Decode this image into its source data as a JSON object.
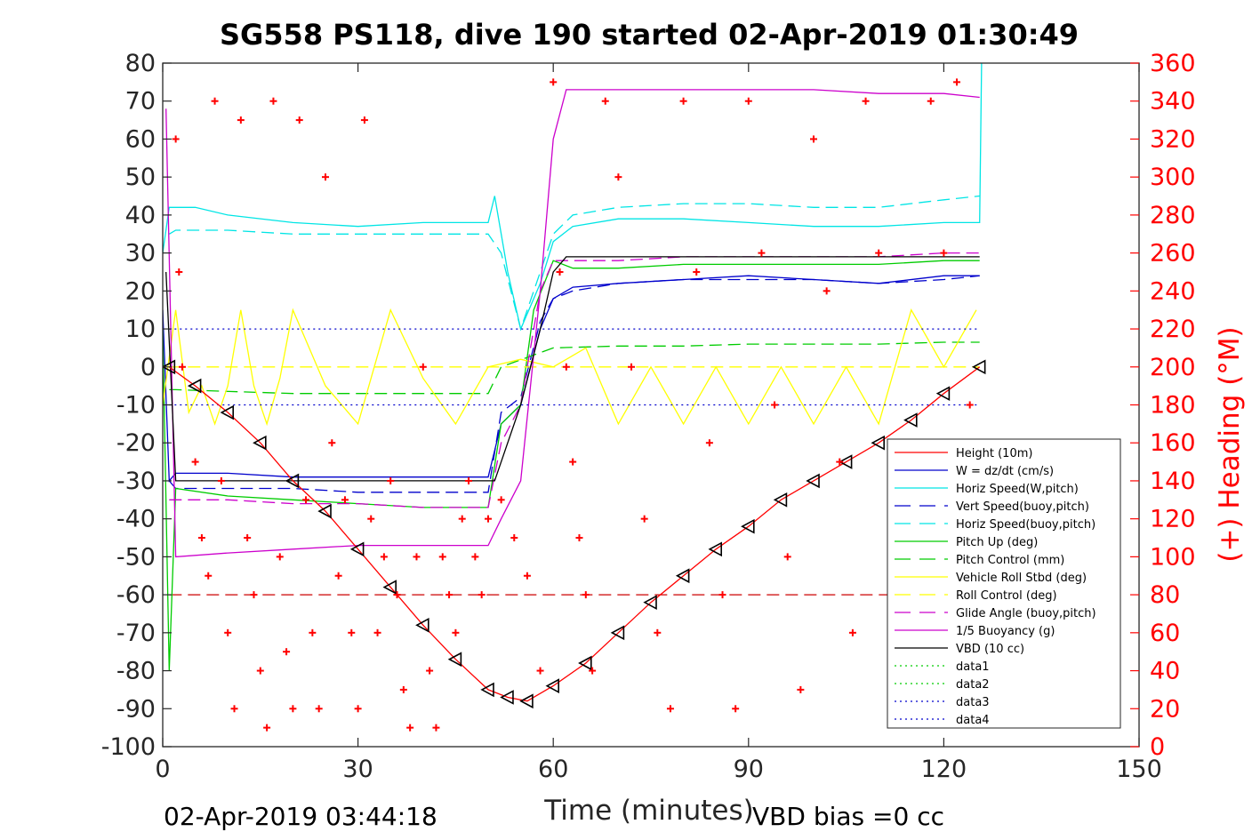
{
  "chart_data": {
    "type": "line",
    "title": "SG558 PS118, dive 190 started 02-Apr-2019 01:30:49",
    "xlabel": "Time (minutes)",
    "ylabel_right": "(+) Heading (°M)",
    "xlim": [
      0,
      150
    ],
    "ylim": [
      -100,
      80
    ],
    "ylim_right": [
      0,
      360
    ],
    "x_ticks": [
      "0",
      "30",
      "60",
      "90",
      "120",
      "150"
    ],
    "y_ticks": [
      "80",
      "70",
      "60",
      "50",
      "40",
      "30",
      "20",
      "10",
      "0",
      "-10",
      "-20",
      "-30",
      "-40",
      "-50",
      "-60",
      "-70",
      "-80",
      "-90",
      "-100"
    ],
    "y_ticks_right": [
      "360",
      "340",
      "320",
      "300",
      "280",
      "260",
      "240",
      "220",
      "200",
      "180",
      "160",
      "140",
      "120",
      "100",
      "80",
      "60",
      "40",
      "20",
      "0"
    ],
    "footer_left": "02-Apr-2019 03:44:18",
    "footer_right": "VBD bias =0 cc",
    "legend_position": "lower-right",
    "series": [
      {
        "name": "Height (10m)",
        "color": "#ff0000",
        "style": "solid",
        "marker": "triangle",
        "x": [
          1,
          5,
          10,
          15,
          20,
          25,
          30,
          35,
          40,
          45,
          50,
          53,
          56,
          60,
          65,
          70,
          75,
          80,
          85,
          90,
          95,
          100,
          105,
          110,
          115,
          120,
          125.5
        ],
        "y": [
          0,
          -5,
          -12,
          -20,
          -30,
          -38,
          -48,
          -58,
          -68,
          -77,
          -85,
          -87,
          -88,
          -84,
          -78,
          -70,
          -62,
          -55,
          -48,
          -42,
          -35,
          -30,
          -25,
          -20,
          -14,
          -7,
          0
        ]
      },
      {
        "name": "W = dz/dt (cm/s)",
        "color": "#0000cc",
        "style": "solid",
        "x": [
          0,
          1,
          2,
          5,
          10,
          20,
          30,
          40,
          50,
          52,
          55,
          58,
          60,
          63,
          70,
          80,
          90,
          100,
          110,
          120,
          125.5
        ],
        "y": [
          15,
          -30,
          -28,
          -28,
          -28,
          -29,
          -29,
          -29,
          -29,
          -15,
          -10,
          10,
          18,
          21,
          22,
          23,
          24,
          23,
          22,
          24,
          24
        ]
      },
      {
        "name": "Horiz Speed(W,pitch)",
        "color": "#00e5e5",
        "style": "solid",
        "x": [
          0,
          1,
          2,
          5,
          10,
          20,
          30,
          40,
          50,
          51,
          53,
          55,
          58,
          60,
          63,
          70,
          80,
          90,
          100,
          110,
          120,
          125.5,
          125.8
        ],
        "y": [
          30,
          42,
          42,
          42,
          40,
          38,
          37,
          38,
          38,
          45,
          25,
          10,
          22,
          33,
          37,
          39,
          39,
          38,
          37,
          37,
          38,
          38,
          80
        ]
      },
      {
        "name": "Vert Speed(buoy,pitch)",
        "color": "#0000cc",
        "style": "dashed",
        "x": [
          1,
          2,
          10,
          20,
          30,
          40,
          50,
          52,
          55,
          58,
          60,
          63,
          70,
          80,
          90,
          100,
          110,
          120,
          125.5
        ],
        "y": [
          -30,
          -32,
          -32,
          -32,
          -33,
          -33,
          -33,
          -12,
          -8,
          12,
          18,
          20,
          22,
          23,
          23,
          23,
          22,
          23,
          24
        ]
      },
      {
        "name": "Horiz Speed(buoy,pitch)",
        "color": "#00e5e5",
        "style": "dashed",
        "x": [
          1,
          2,
          10,
          20,
          30,
          40,
          50,
          52,
          55,
          58,
          60,
          63,
          70,
          80,
          90,
          100,
          110,
          120,
          125.5
        ],
        "y": [
          35,
          36,
          36,
          35,
          35,
          35,
          35,
          30,
          10,
          25,
          35,
          40,
          42,
          43,
          43,
          42,
          42,
          44,
          45
        ]
      },
      {
        "name": "Pitch Up (deg)",
        "color": "#00cc00",
        "style": "solid",
        "x": [
          0,
          1,
          2,
          10,
          20,
          30,
          40,
          50,
          52,
          55,
          57,
          60,
          63,
          70,
          80,
          90,
          100,
          110,
          120,
          125.5
        ],
        "y": [
          10,
          -80,
          -32,
          -34,
          -35,
          -36,
          -37,
          -37,
          -15,
          -10,
          15,
          28,
          26,
          26,
          27,
          27,
          27,
          27,
          28,
          28
        ]
      },
      {
        "name": "Pitch Control (mm)",
        "color": "#00cc00",
        "style": "dashed",
        "x": [
          1,
          2,
          20,
          40,
          50,
          52,
          60,
          70,
          80,
          90,
          100,
          110,
          120,
          125.5
        ],
        "y": [
          -6,
          -6,
          -7,
          -7,
          -7,
          0,
          5,
          5.5,
          5.5,
          6,
          6,
          6,
          6.5,
          6.5
        ]
      },
      {
        "name": "Vehicle Roll Stbd (deg)",
        "color": "#ffff00",
        "style": "solid",
        "x": [
          0,
          2,
          4,
          6,
          8,
          10,
          12,
          14,
          16,
          18,
          20,
          25,
          30,
          35,
          40,
          45,
          50,
          55,
          60,
          65,
          70,
          75,
          80,
          85,
          90,
          95,
          100,
          105,
          110,
          115,
          120,
          125
        ],
        "y": [
          -10,
          15,
          -12,
          -5,
          -15,
          -5,
          15,
          -5,
          -15,
          -3,
          15,
          -5,
          -15,
          15,
          -3,
          -15,
          0,
          2,
          0,
          5,
          -15,
          0,
          -15,
          0,
          -15,
          0,
          -15,
          0,
          -15,
          15,
          0,
          15
        ]
      },
      {
        "name": "Roll Control (deg)",
        "color": "#ffff00",
        "style": "dashed",
        "x": [
          1,
          125.5
        ],
        "y": [
          0,
          0
        ]
      },
      {
        "name": "Glide Angle (buoy,pitch)",
        "color": "#cc00cc",
        "style": "dashed",
        "x": [
          1,
          2,
          10,
          20,
          30,
          40,
          50,
          52,
          55,
          58,
          60,
          63,
          70,
          80,
          90,
          100,
          110,
          120,
          125.5
        ],
        "y": [
          -35,
          -35,
          -35,
          -36,
          -36,
          -37,
          -37,
          -20,
          -10,
          20,
          28,
          28,
          28,
          29,
          29,
          29,
          29,
          30,
          30
        ]
      },
      {
        "name": "1/5 Buoyancy (g)",
        "color": "#cc00cc",
        "style": "solid",
        "x": [
          0.5,
          2,
          10,
          20,
          30,
          40,
          50,
          52,
          55,
          58,
          60,
          62,
          70,
          80,
          90,
          100,
          110,
          120,
          125.5
        ],
        "y": [
          68,
          -50,
          -49,
          -48,
          -47,
          -47,
          -47,
          -40,
          -30,
          20,
          60,
          73,
          73,
          73,
          73,
          73,
          72,
          72,
          71
        ]
      },
      {
        "name": "VBD (10 cc)",
        "color": "#000000",
        "style": "solid",
        "x": [
          0.5,
          2,
          10,
          20,
          30,
          40,
          50,
          51,
          55,
          58,
          60,
          62,
          70,
          80,
          90,
          100,
          110,
          120,
          125.5
        ],
        "y": [
          25,
          -30,
          -30,
          -30,
          -30,
          -30,
          -30,
          -30,
          -10,
          10,
          25,
          29,
          29,
          29,
          29,
          29,
          29,
          29,
          29
        ]
      },
      {
        "name": "data1",
        "color": "#00cc00",
        "style": "dotted",
        "x": [],
        "y": []
      },
      {
        "name": "data2",
        "color": "#00cc00",
        "style": "dotted",
        "x": [],
        "y": []
      },
      {
        "name": "data3",
        "color": "#0000cc",
        "style": "dotted",
        "x": [
          1,
          125.5
        ],
        "y": [
          10,
          10
        ]
      },
      {
        "name": "data4",
        "color": "#0000cc",
        "style": "dotted",
        "x": [
          1,
          125.5
        ],
        "y": [
          -10,
          -10
        ]
      }
    ],
    "reference_lines": [
      {
        "color": "#cc0000",
        "style": "dashed",
        "y": -60,
        "x": [
          1,
          125.5
        ]
      }
    ],
    "heading_points": {
      "color": "#ff0000",
      "marker": "plus",
      "axis": "right",
      "x": [
        2,
        2.5,
        3,
        5,
        6,
        7,
        8,
        9,
        10,
        11,
        12,
        13,
        14,
        15,
        16,
        17,
        18,
        19,
        20,
        21,
        22,
        23,
        24,
        25,
        26,
        27,
        28,
        29,
        30,
        31,
        32,
        33,
        34,
        35,
        36,
        37,
        38,
        39,
        40,
        41,
        42,
        43,
        44,
        45,
        46,
        47,
        48,
        49,
        50,
        52,
        54,
        56,
        58,
        60,
        61,
        62,
        63,
        64,
        65,
        66,
        68,
        70,
        72,
        74,
        76,
        78,
        80,
        82,
        84,
        86,
        88,
        90,
        92,
        94,
        96,
        98,
        100,
        102,
        104,
        106,
        108,
        110,
        112,
        114,
        116,
        118,
        120,
        122,
        124
      ],
      "y": [
        320,
        250,
        200,
        150,
        110,
        90,
        340,
        140,
        60,
        20,
        330,
        110,
        80,
        40,
        10,
        340,
        100,
        50,
        20,
        330,
        130,
        60,
        20,
        300,
        160,
        90,
        130,
        60,
        20,
        330,
        120,
        60,
        100,
        140,
        80,
        30,
        10,
        100,
        200,
        40,
        10,
        100,
        80,
        60,
        120,
        140,
        100,
        80,
        120,
        130,
        110,
        90,
        40,
        350,
        250,
        200,
        150,
        110,
        80,
        40,
        340,
        300,
        200,
        120,
        60,
        20,
        340,
        250,
        160,
        80,
        20,
        340,
        260,
        180,
        100,
        30,
        320,
        240,
        150,
        60,
        340,
        260,
        160,
        80,
        20,
        340,
        260,
        350,
        180
      ]
    }
  }
}
